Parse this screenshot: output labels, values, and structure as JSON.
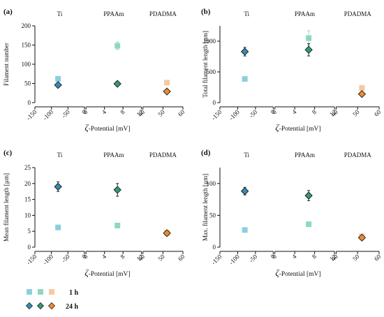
{
  "chart_data": [
    {
      "type": "scatter",
      "panel_label": "(a)",
      "ylabel": "Filament number",
      "xlabel": "-Potential [mV]",
      "xlabel_symbol": "ζ",
      "ylim": [
        0,
        200
      ],
      "yticks": [
        "0",
        "50",
        "100",
        "150",
        "200"
      ],
      "groups": [
        {
          "title": "Ti",
          "xlim": [
            -150,
            0
          ],
          "xticks": [
            "-150",
            "-100",
            "-50",
            "0"
          ],
          "points": [
            {
              "series": "1 h",
              "x": -80,
              "y": 62,
              "err": 3
            },
            {
              "series": "24 h",
              "x": -80,
              "y": 46,
              "err": 2
            }
          ]
        },
        {
          "title": "PPAAm",
          "xlim": [
            0,
            12
          ],
          "xticks": [
            "0",
            "4",
            "8",
            "12"
          ],
          "points": [
            {
              "series": "1 h",
              "x": 6.8,
              "y": 148,
              "err": 10
            },
            {
              "series": "24 h",
              "x": 6.8,
              "y": 49,
              "err": 2
            }
          ]
        },
        {
          "title": "PDADMA",
          "xlim": [
            40,
            60
          ],
          "xticks": [
            "40",
            "50",
            "60"
          ],
          "points": [
            {
              "series": "1 h",
              "x": 52,
              "y": 52,
              "err": 4
            },
            {
              "series": "24 h",
              "x": 52,
              "y": 29,
              "err": 2
            }
          ]
        }
      ]
    },
    {
      "type": "scatter",
      "panel_label": "(b)",
      "ylabel": "Total filament length [µm]",
      "xlabel": "-Potential [mV]",
      "xlabel_symbol": "ζ",
      "ylim": [
        0,
        1250
      ],
      "yticks": [
        "0",
        "500",
        "1000"
      ],
      "groups": [
        {
          "title": "Ti",
          "xlim": [
            -150,
            0
          ],
          "xticks": [
            "-150",
            "-100",
            "-50",
            "0"
          ],
          "points": [
            {
              "series": "1 h",
              "x": -80,
              "y": 385,
              "err": 20
            },
            {
              "series": "24 h",
              "x": -80,
              "y": 830,
              "err": 70
            }
          ]
        },
        {
          "title": "PPAAm",
          "xlim": [
            0,
            12
          ],
          "xticks": [
            "0",
            "4",
            "8",
            "12"
          ],
          "points": [
            {
              "series": "1 h",
              "x": 6.8,
              "y": 1050,
              "err": 120
            },
            {
              "series": "24 h",
              "x": 6.8,
              "y": 860,
              "err": 100
            }
          ]
        },
        {
          "title": "PDADMA",
          "xlim": [
            40,
            60
          ],
          "xticks": [
            "40",
            "50",
            "60"
          ],
          "points": [
            {
              "series": "1 h",
              "x": 52,
              "y": 240,
              "err": 25
            },
            {
              "series": "24 h",
              "x": 52,
              "y": 140,
              "err": 25
            }
          ]
        }
      ]
    },
    {
      "type": "scatter",
      "panel_label": "(c)",
      "ylabel": "Mean filament length [µm]",
      "xlabel": "-Potential [mV]",
      "xlabel_symbol": "ζ",
      "ylim": [
        0,
        25
      ],
      "yticks": [
        "0",
        "5",
        "10",
        "15",
        "20",
        "25"
      ],
      "groups": [
        {
          "title": "Ti",
          "xlim": [
            -150,
            0
          ],
          "xticks": [
            "-150",
            "-100",
            "-50",
            "0"
          ],
          "points": [
            {
              "series": "1 h",
              "x": -80,
              "y": 6.2,
              "err": 0.4
            },
            {
              "series": "24 h",
              "x": -80,
              "y": 19,
              "err": 1.5
            }
          ]
        },
        {
          "title": "PPAAm",
          "xlim": [
            0,
            12
          ],
          "xticks": [
            "0",
            "4",
            "8",
            "12"
          ],
          "points": [
            {
              "series": "1 h",
              "x": 6.8,
              "y": 6.8,
              "err": 0.4
            },
            {
              "series": "24 h",
              "x": 6.8,
              "y": 18,
              "err": 2
            }
          ]
        },
        {
          "title": "PDADMA",
          "xlim": [
            40,
            60
          ],
          "xticks": [
            "40",
            "50",
            "60"
          ],
          "points": [
            {
              "series": "1 h",
              "x": 52,
              "y": 4.5,
              "err": 0.3
            },
            {
              "series": "24 h",
              "x": 52,
              "y": 4.4,
              "err": 0.3
            }
          ]
        }
      ]
    },
    {
      "type": "scatter",
      "panel_label": "(d)",
      "ylabel": "Max. filament length [µm]",
      "xlabel": "-Potential [mV]",
      "xlabel_symbol": "ζ",
      "ylim": [
        0,
        125
      ],
      "yticks": [
        "0",
        "50",
        "100"
      ],
      "groups": [
        {
          "title": "Ti",
          "xlim": [
            -150,
            0
          ],
          "xticks": [
            "-150",
            "-100",
            "-50",
            "0"
          ],
          "points": [
            {
              "series": "1 h",
              "x": -80,
              "y": 27,
              "err": 2
            },
            {
              "series": "24 h",
              "x": -80,
              "y": 88,
              "err": 6
            }
          ]
        },
        {
          "title": "PPAAm",
          "xlim": [
            0,
            12
          ],
          "xticks": [
            "0",
            "4",
            "8",
            "12"
          ],
          "points": [
            {
              "series": "1 h",
              "x": 6.8,
              "y": 36,
              "err": 2
            },
            {
              "series": "24 h",
              "x": 6.8,
              "y": 81,
              "err": 8
            }
          ]
        },
        {
          "title": "PDADMA",
          "xlim": [
            40,
            60
          ],
          "xticks": [
            "40",
            "50",
            "60"
          ],
          "points": [
            {
              "series": "1 h",
              "x": 52,
              "y": 17,
              "err": 3
            },
            {
              "series": "24 h",
              "x": 52,
              "y": 15,
              "err": 2
            }
          ]
        }
      ]
    }
  ],
  "legend": {
    "entries": [
      {
        "label": "1 h",
        "marker": "square"
      },
      {
        "label": "24 h",
        "marker": "diamond"
      }
    ]
  },
  "colors": {
    "Ti": {
      "1 h": "#8ccfdc",
      "24 h": "#2f8fb8"
    },
    "PPAAm": {
      "1 h": "#8fd8c0",
      "24 h": "#2e9c78"
    },
    "PDADMA": {
      "1 h": "#f7c9a0",
      "24 h": "#ee8b30"
    }
  }
}
